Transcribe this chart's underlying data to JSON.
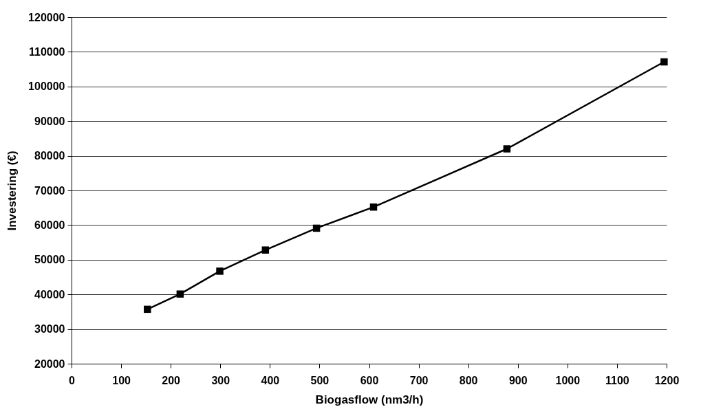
{
  "chart_data": {
    "type": "line",
    "xlabel": "Biogasflow (nm3/h)",
    "ylabel": "Investering (€)",
    "series": [
      {
        "color": "#000000",
        "x": [
          153,
          219,
          299,
          391,
          494,
          609,
          878,
          1195
        ],
        "values": [
          35700,
          40100,
          46700,
          52800,
          59100,
          65200,
          82000,
          107100
        ]
      }
    ],
    "xlim": [
      0,
      1200
    ],
    "xticks": [
      0,
      100,
      200,
      300,
      400,
      500,
      600,
      700,
      800,
      900,
      1000,
      1100,
      1200
    ],
    "ylim": [
      20000,
      120000
    ],
    "yticks": [
      20000,
      30000,
      40000,
      50000,
      60000,
      70000,
      80000,
      90000,
      100000,
      110000,
      120000
    ],
    "grid": "y",
    "legend": false,
    "marker": "square",
    "line_style": "solid"
  }
}
